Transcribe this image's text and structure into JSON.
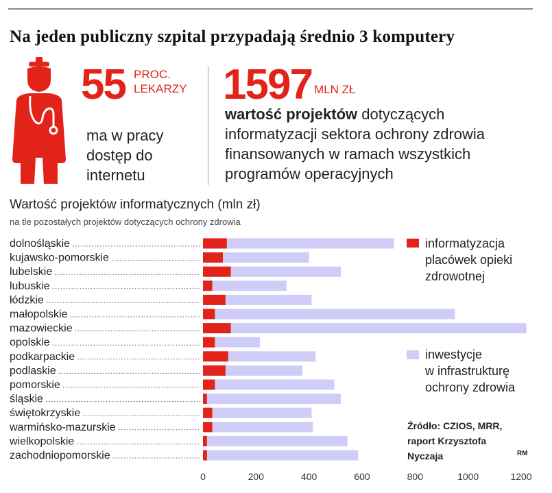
{
  "headline": "Na jeden publiczny szpital przypadają średnio 3 komputery",
  "stat1": {
    "value": "55",
    "unit_line1": "PROC.",
    "unit_line2": "LEKARZY",
    "caption": "ma w pracy dostęp do internetu"
  },
  "stat2": {
    "value": "1597",
    "unit": "MLN ZŁ",
    "caption_bold": "wartość projektów",
    "caption_rest": " dotyczących informatyzacji sektora ochrony zdrowia finansowanych w ramach wszystkich programów operacyjnych"
  },
  "icons": {
    "doctor": "doctor-icon"
  },
  "colors": {
    "accent": "#e2231a",
    "infra": "#cfccf7",
    "rule": "#8a8a8a"
  },
  "chart_data": {
    "type": "bar",
    "orientation": "horizontal",
    "stacked": "overlay",
    "title": "Wartość projektów informatycznych (mln zł)",
    "subtitle": "na tle pozostałych projektów dotyczących ochrony zdrowia",
    "categories": [
      "dolnośląskie",
      "kujawsko-pomorskie",
      "lubelskie",
      "lubuskie",
      "łódzkie",
      "małopolskie",
      "mazowieckie",
      "opolskie",
      "podkarpackie",
      "podlaskie",
      "pomorskie",
      "śląskie",
      "świętokrzyskie",
      "warmińsko-mazurskie",
      "wielkopolskie",
      "zachodniopomorskie"
    ],
    "series": [
      {
        "name": "informatyzacja placówek opieki zdrowotnej",
        "color": "#e2231a",
        "values": [
          90,
          75,
          105,
          35,
          85,
          45,
          105,
          45,
          95,
          85,
          45,
          15,
          35,
          35,
          15,
          15
        ]
      },
      {
        "name": "inwestycje w infrastrukturę ochrony zdrowia",
        "color": "#cfccf7",
        "values": [
          720,
          400,
          520,
          315,
          410,
          950,
          1220,
          215,
          425,
          375,
          495,
          520,
          410,
          415,
          545,
          585
        ]
      }
    ],
    "xlim": [
      0,
      1200
    ],
    "xticks": [
      0,
      200,
      400,
      600,
      800,
      1000,
      1200
    ],
    "legend": [
      {
        "line1": "informatyzacja",
        "line2": "placówek opieki",
        "line3": "zdrowotnej"
      },
      {
        "line1": "inwestycje",
        "line2": "w infrastrukturę",
        "line3": "ochrony zdrowia"
      }
    ],
    "source": {
      "line1": "Źródło: CZIOS, MRR,",
      "line2": "raport Krzysztofa",
      "line3": "Nyczaja"
    },
    "signature": "RM"
  }
}
